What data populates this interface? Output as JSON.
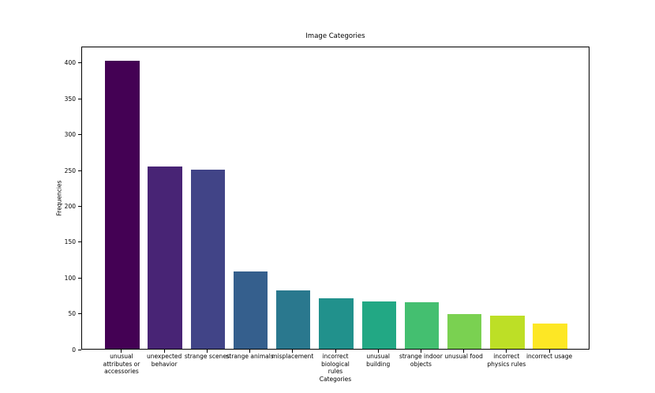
{
  "chart_data": {
    "type": "bar",
    "title": "Image Categories",
    "xlabel": "Categories",
    "ylabel": "Frequencies",
    "categories": [
      "unusual\nattributes or\naccessories",
      "unexpected\nbehavior",
      "strange scenes",
      "strange animals",
      "misplacement",
      "incorrect\nbiological\nrules",
      "unusual\nbuilding",
      "strange indoor\nobjects",
      "unusual food",
      "incorrect\nphysics rules",
      "incorrect usage"
    ],
    "values": [
      402,
      255,
      250,
      108,
      81,
      71,
      66,
      65,
      48,
      46,
      35
    ],
    "bar_colors": [
      "#440154",
      "#482475",
      "#414487",
      "#355f8d",
      "#2a788e",
      "#21918c",
      "#22a884",
      "#44bf70",
      "#7ad151",
      "#bddf26",
      "#fde725"
    ],
    "colormap": "viridis",
    "bar_width": 0.8,
    "xlim": [
      -0.94,
      10.94
    ],
    "ylim": [
      0,
      423
    ],
    "yticks": [
      0,
      50,
      100,
      150,
      200,
      250,
      300,
      350,
      400
    ],
    "grid": false,
    "legend": null
  }
}
